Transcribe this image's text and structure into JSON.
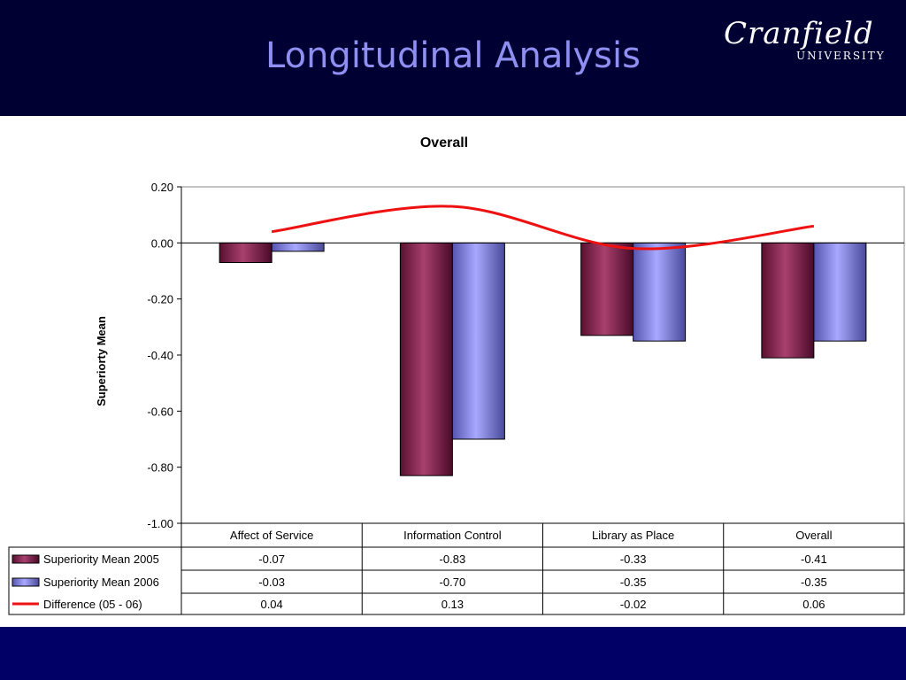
{
  "header": {
    "title": "Longitudinal Analysis",
    "logo_main": "Cranfield",
    "logo_sub": "UNIVERSITY"
  },
  "colors": {
    "header": "#000033",
    "footer": "#000066",
    "title": "#8f8ff2",
    "s2005": "#8b2a55",
    "s2006": "#9999ff",
    "diff": "#ee1111"
  },
  "chart_data": {
    "type": "bar",
    "title": "Overall",
    "xlabel": "",
    "ylabel": "Superiorty Mean",
    "ylim": [
      -1.0,
      0.2
    ],
    "yticks": [
      "0.20",
      "0.00",
      "-0.20",
      "-0.40",
      "-0.60",
      "-0.80",
      "-1.00"
    ],
    "categories": [
      "Affect of Service",
      "Information Control",
      "Library as Place",
      "Overall"
    ],
    "series": [
      {
        "name": "Superiority Mean 2005",
        "type": "bar",
        "values": [
          -0.07,
          -0.83,
          -0.33,
          -0.41
        ],
        "labels": [
          "-0.07",
          "-0.83",
          "-0.33",
          "-0.41"
        ]
      },
      {
        "name": "Superiority Mean 2006",
        "type": "bar",
        "values": [
          -0.03,
          -0.7,
          -0.35,
          -0.35
        ],
        "labels": [
          "-0.03",
          "-0.70",
          "-0.35",
          "-0.35"
        ]
      },
      {
        "name": "Difference (05 - 06)",
        "type": "line",
        "values": [
          0.04,
          0.13,
          -0.02,
          0.06
        ],
        "labels": [
          "0.04",
          "0.13",
          "-0.02",
          "0.06"
        ]
      }
    ],
    "legend": "data-table-left"
  }
}
